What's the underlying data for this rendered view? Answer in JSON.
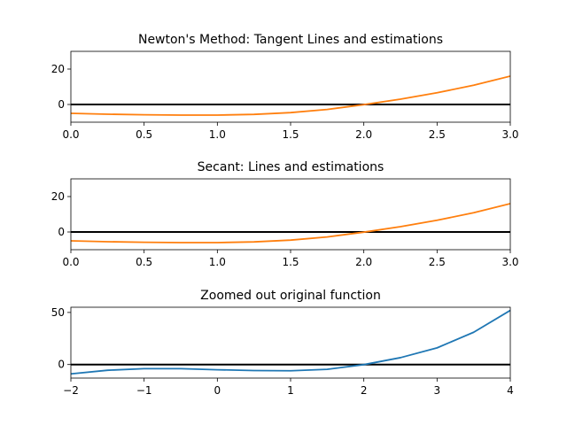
{
  "chart_data": [
    {
      "type": "line",
      "title": "Newton's Method: Tangent Lines and estimations",
      "xlim": [
        0.0,
        3.0
      ],
      "ylim": [
        -10,
        30
      ],
      "xticks": [
        0.0,
        0.5,
        1.0,
        1.5,
        2.0,
        2.5,
        3.0
      ],
      "xtick_labels": [
        "0.0",
        "0.5",
        "1.0",
        "1.5",
        "2.0",
        "2.5",
        "3.0"
      ],
      "yticks": [
        0,
        20
      ],
      "ytick_labels": [
        "0",
        "20"
      ],
      "zero_line": true,
      "series": [
        {
          "color": "#ff7f0e",
          "x": [
            0.0,
            0.25,
            0.5,
            0.75,
            1.0,
            1.25,
            1.5,
            1.75,
            2.0,
            2.25,
            2.5,
            2.75,
            3.0
          ],
          "y": [
            -5.0,
            -5.5,
            -5.8,
            -6.0,
            -6.0,
            -5.6,
            -4.6,
            -2.8,
            -0.1,
            3.0,
            6.6,
            10.9,
            16.0
          ]
        }
      ],
      "grid": false
    },
    {
      "type": "line",
      "title": "Secant: Lines and estimations",
      "xlim": [
        0.0,
        3.0
      ],
      "ylim": [
        -10,
        30
      ],
      "xticks": [
        0.0,
        0.5,
        1.0,
        1.5,
        2.0,
        2.5,
        3.0
      ],
      "xtick_labels": [
        "0.0",
        "0.5",
        "1.0",
        "1.5",
        "2.0",
        "2.5",
        "3.0"
      ],
      "yticks": [
        0,
        20
      ],
      "ytick_labels": [
        "0",
        "20"
      ],
      "zero_line": true,
      "series": [
        {
          "color": "#ff7f0e",
          "x": [
            0.0,
            0.25,
            0.5,
            0.75,
            1.0,
            1.25,
            1.5,
            1.75,
            2.0,
            2.25,
            2.5,
            2.75,
            3.0
          ],
          "y": [
            -5.0,
            -5.5,
            -5.8,
            -6.0,
            -6.0,
            -5.6,
            -4.6,
            -2.8,
            -0.1,
            3.0,
            6.6,
            10.9,
            16.0
          ]
        }
      ],
      "grid": false
    },
    {
      "type": "line",
      "title": "Zoomed out original function",
      "xlim": [
        -2,
        4
      ],
      "ylim": [
        -13,
        55
      ],
      "xticks": [
        -2,
        -1,
        0,
        1,
        2,
        3,
        4
      ],
      "xtick_labels": [
        "−2",
        "−1",
        "0",
        "1",
        "2",
        "3",
        "4"
      ],
      "yticks": [
        0,
        50
      ],
      "ytick_labels": [
        "0",
        "50"
      ],
      "zero_line": true,
      "series": [
        {
          "color": "#1f77b4",
          "x": [
            -2.0,
            -1.5,
            -1.0,
            -0.5,
            0.0,
            0.5,
            1.0,
            1.5,
            2.0,
            2.5,
            3.0,
            3.5,
            4.0
          ],
          "y": [
            -9.0,
            -5.5,
            -4.0,
            -4.0,
            -5.0,
            -5.8,
            -6.0,
            -4.6,
            -0.1,
            6.6,
            16.0,
            31.0,
            52.0
          ]
        }
      ],
      "grid": false
    }
  ]
}
